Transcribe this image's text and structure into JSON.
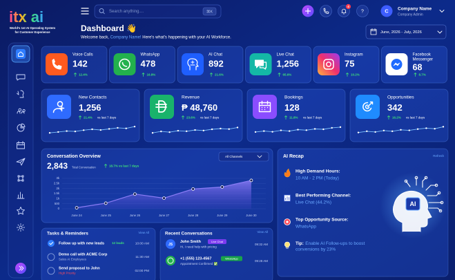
{
  "header": {
    "logo": "itx ai",
    "tagline": [
      "World's 1st AI Operating System",
      "for Customer Experience"
    ],
    "search_placeholder": "Search anything....",
    "search_shortcut": "⌘K",
    "notification_count": "4",
    "help": "?",
    "avatar": "C",
    "company_name": "Company Name",
    "company_role": "Company Admin",
    "date_range": "June, 2026 - July, 2026"
  },
  "dashboard": {
    "title": "Dashboard 👋",
    "welcome_prefix": "Welcome back, ",
    "welcome_name": "Company Name!",
    "welcome_suffix": " Here's what's happening with your AI Workforce."
  },
  "channels": [
    {
      "label": "Voice Calls",
      "value": "142",
      "change": "12.4%"
    },
    {
      "label": "WhatsApp",
      "value": "478",
      "change": "16.8%"
    },
    {
      "label": "AI Chat",
      "value": "892",
      "change": "21.6%"
    },
    {
      "label": "Live Chat",
      "value": "1,256",
      "change": "65.6%"
    },
    {
      "label": "Instagram",
      "value": "75",
      "change": "10.2%"
    },
    {
      "label": [
        "Facebook",
        "Messenger"
      ],
      "value": "68",
      "change": "8.7%"
    }
  ],
  "kpis": [
    {
      "label": "New Contacts",
      "value": "1,256",
      "change": "21.4%",
      "period": "vs last 7 days",
      "trend": [
        3,
        3.5,
        4,
        3.8,
        4.5,
        5,
        4.6,
        5.2,
        5.8,
        5.5,
        6.5
      ]
    },
    {
      "label": "Revenue",
      "value": "₱ 48,760",
      "change": "23.6%",
      "period": "vs last 7 days",
      "trend": [
        3,
        3.8,
        3.4,
        4.2,
        3.9,
        4.6,
        4.3,
        5,
        5.4,
        5.1,
        6
      ]
    },
    {
      "label": "Bookings",
      "value": "128",
      "change": "11.8%",
      "period": "vs last 7 days",
      "trend": [
        3.5,
        4,
        3.6,
        4.4,
        4,
        4.8,
        4.5,
        5.2,
        5,
        5.8,
        6.2
      ]
    },
    {
      "label": "Opportunities",
      "value": "342",
      "change": "16.2%",
      "period": "vs last 7 days",
      "trend": [
        3.2,
        3.9,
        3.5,
        4.3,
        3.9,
        4.7,
        4.4,
        5.1,
        5.6,
        5.3,
        6.4
      ]
    }
  ],
  "conversation_overview": {
    "title": "Conversation Overview",
    "total": "2,843",
    "total_label": "Total Conversation",
    "change": "18.7% vs last 7 days",
    "filter": "All Channels"
  },
  "chart_data": {
    "type": "area",
    "categories": [
      "June 24",
      "June 25",
      "June 26",
      "June 27",
      "June 28",
      "June 29",
      "June 30"
    ],
    "values": [
      100,
      550,
      1450,
      1050,
      1950,
      2150,
      2800
    ],
    "color": "#8b7cf6",
    "ylim": [
      0,
      3000
    ],
    "yticks": [
      0,
      500,
      {
        "value": 1000,
        "label": "1k"
      },
      {
        "value": 1500,
        "label": "1.5k"
      },
      {
        "value": 2000,
        "label": "2k"
      },
      {
        "value": 2500,
        "label": "2.5k"
      },
      {
        "value": 3000,
        "label": "3k"
      }
    ],
    "grid": true
  },
  "ai_recap": {
    "title": "AI Recap",
    "refresh": "Refresh",
    "items": [
      {
        "title": "High Demand Hours:",
        "value": "10 AM - 2 PM (Today)"
      },
      {
        "title": "Best Performing Channel:",
        "value": "Live Chat (44.2%)"
      },
      {
        "title": "Top Opportunity Source:",
        "value": "WhatsApp"
      }
    ],
    "tip_label": "Tip:",
    "tip": [
      "Enable AI Follow-ups to boost",
      "conversions by 23%"
    ],
    "badge": "AI"
  },
  "tasks": {
    "title": "Tasks & Reminders",
    "view_all": "View All",
    "items": [
      {
        "title": "Follow up with new leads",
        "detail": "12 leads",
        "time": "10:00 AM"
      },
      {
        "title": "Demo call with ACME Corp",
        "detail": "Sales AI Employees",
        "time": "11:30 AM"
      },
      {
        "title": "Send proposal to John",
        "detail": "High Priority",
        "time": "02:00 PM"
      }
    ]
  },
  "recent_conversations": {
    "title": "Recent Conversations",
    "view_all": "View All",
    "items": [
      {
        "initials": "JS",
        "name": "John Smith",
        "channel": "Live Chat",
        "message": "Hi, I need help with pricing",
        "time": "09:32 AM"
      },
      {
        "name": "+1 (555) 123-4567",
        "channel": "WhatsApp",
        "message": "Appointment Confirmed ✅",
        "time": "09:28 AM"
      }
    ]
  }
}
